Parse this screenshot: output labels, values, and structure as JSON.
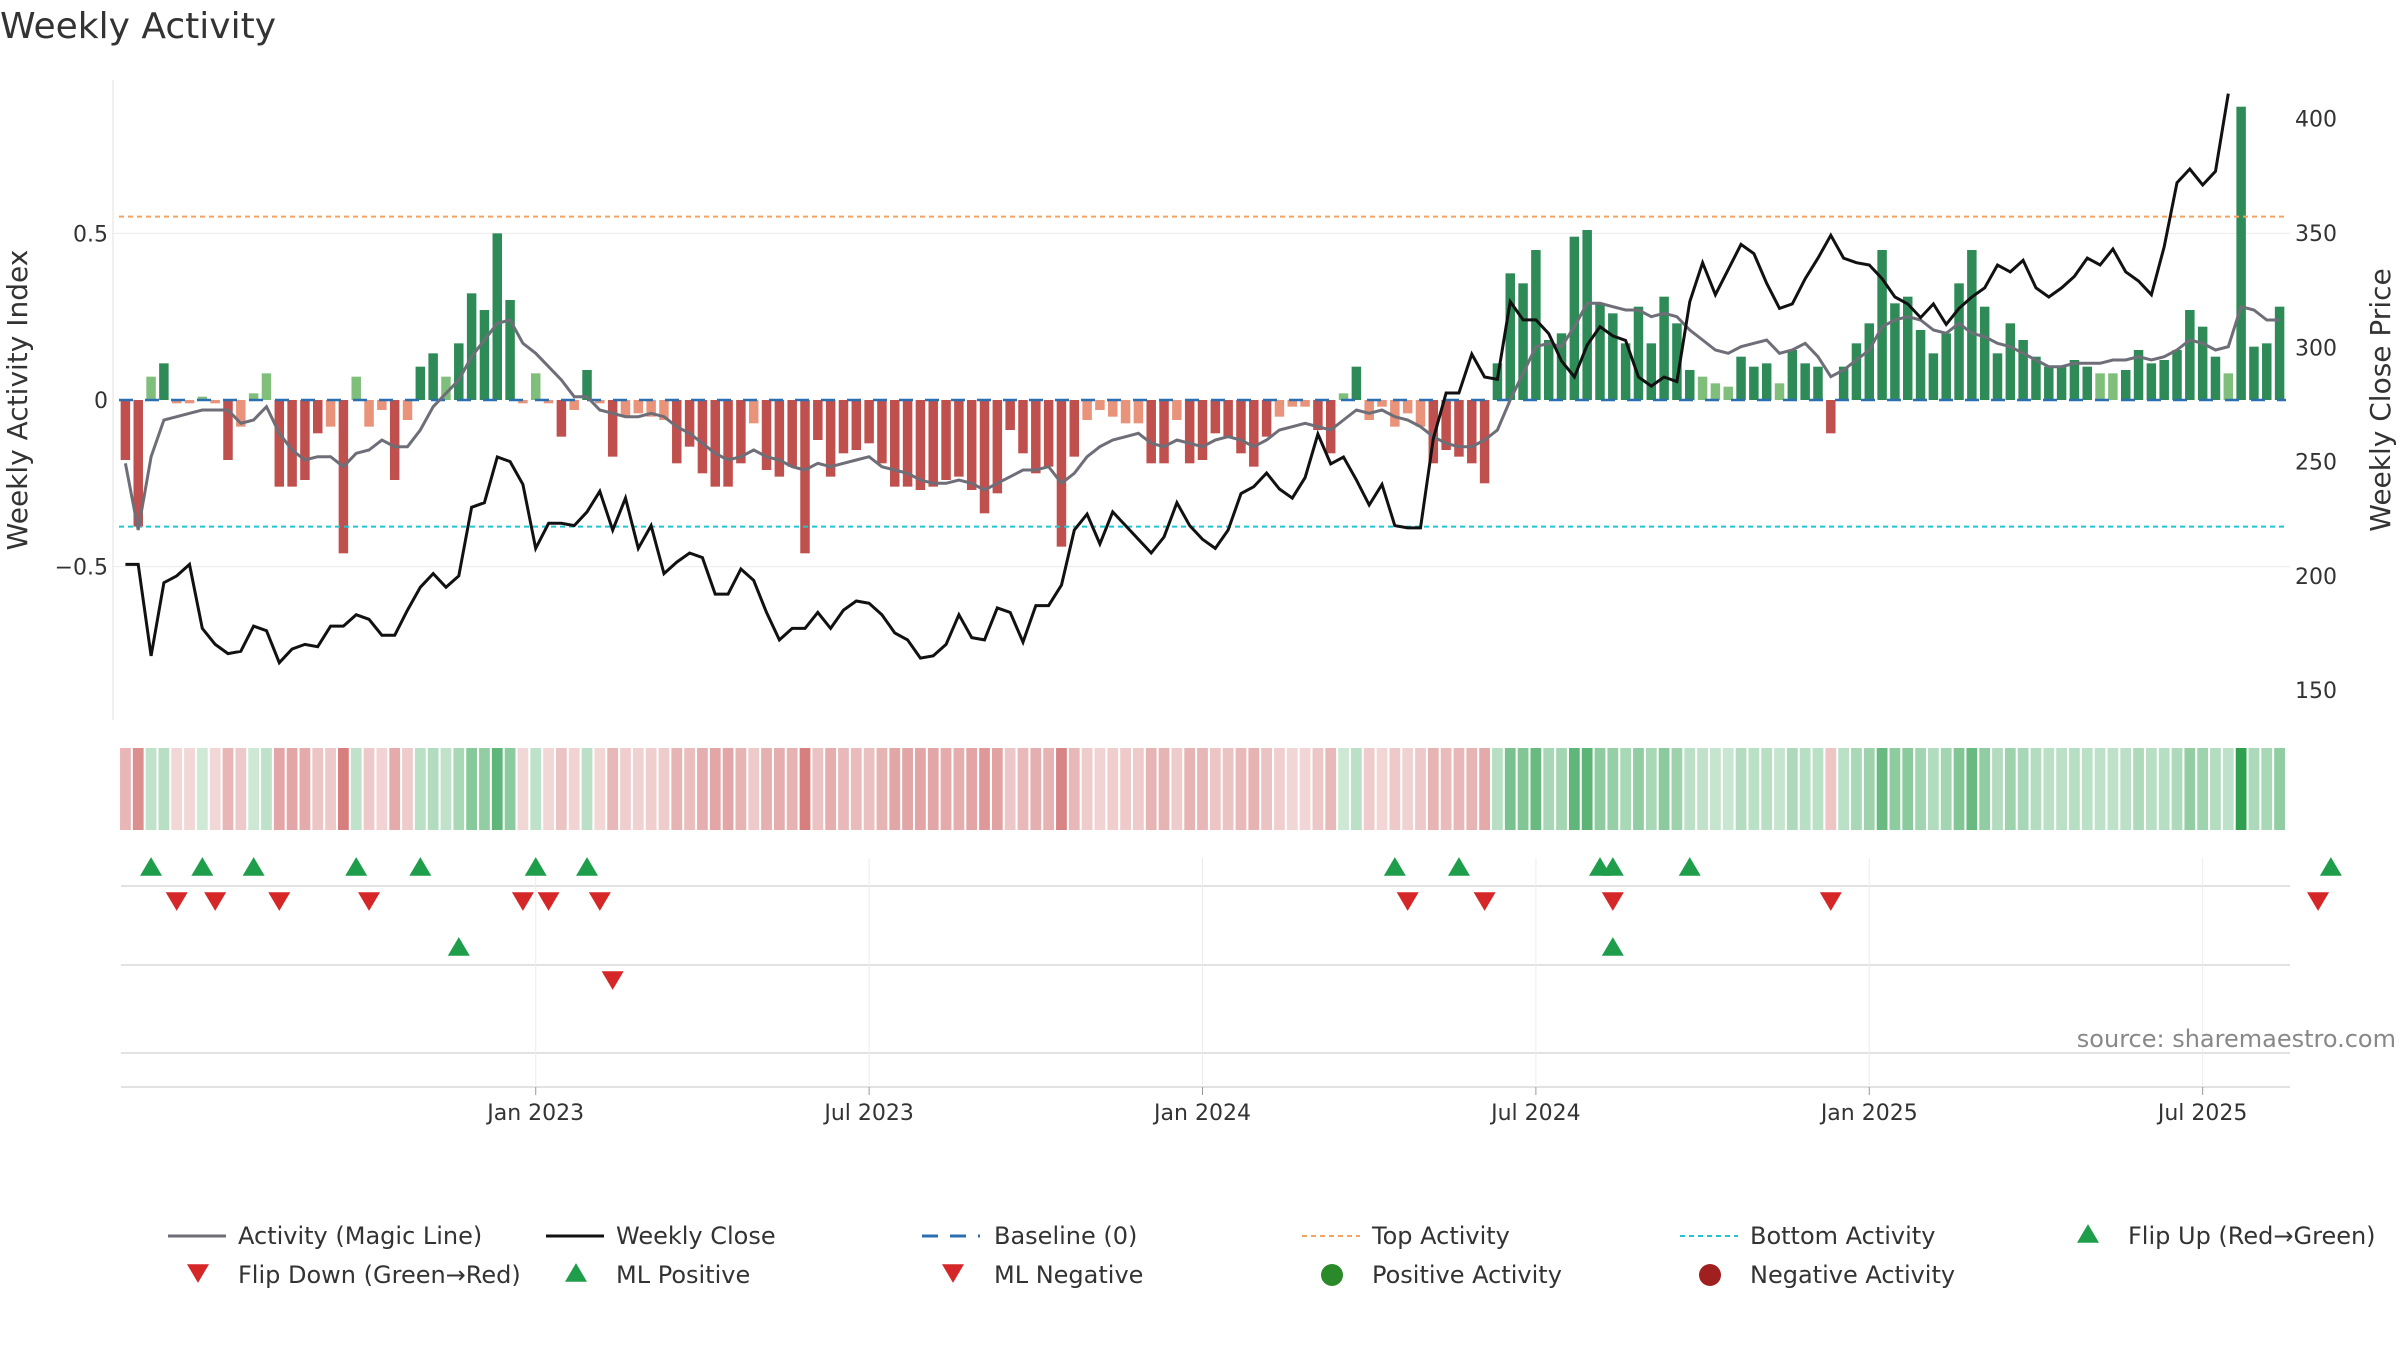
{
  "chart_data": {
    "type": "bar+line",
    "title": "Weekly Activity",
    "left_axis": {
      "label": "Weekly Activity Index",
      "range": [
        -0.95,
        0.95
      ],
      "ticks": [
        -0.5,
        0,
        0.5
      ],
      "tick_labels": [
        "−0.5",
        "0",
        "0.5"
      ]
    },
    "right_axis": {
      "label": "Weekly Close Price",
      "range": [
        140,
        420
      ],
      "ticks": [
        150,
        200,
        250,
        300,
        350,
        400
      ],
      "tick_labels": [
        "150",
        "200",
        "250",
        "300",
        "350",
        "400"
      ]
    },
    "x_axis": {
      "ticks": [
        "Jan 2023",
        "Jul 2023",
        "Jan 2024",
        "Jul 2024",
        "Jan 2025",
        "Jul 2025"
      ],
      "tick_weeks": [
        32,
        58,
        84,
        110,
        136,
        162
      ]
    },
    "thresholds": {
      "top_activity": 0.55,
      "bottom_activity": -0.38,
      "baseline": 0
    },
    "colors": {
      "positive_strong": "#2e8b57",
      "positive_weak": "#7fbf7b",
      "negative_strong": "#c0504d",
      "negative_weak": "#e8937a",
      "magic_line": "#6e6e78",
      "close_line": "#111111",
      "top_line": "#f4a460",
      "bottom_line": "#22c5cf",
      "baseline": "#2b6fb0",
      "flip_up": "#1e9e4a",
      "flip_down": "#d62728",
      "positive_dot": "#2a8a2a",
      "negative_dot": "#a02020"
    },
    "activity_index": [
      -0.18,
      -0.38,
      0.07,
      0.11,
      -0.01,
      -0.01,
      0.01,
      -0.01,
      -0.18,
      -0.08,
      0.02,
      0.08,
      -0.26,
      -0.26,
      -0.24,
      -0.1,
      -0.08,
      -0.46,
      0.07,
      -0.08,
      -0.03,
      -0.24,
      -0.06,
      0.1,
      0.14,
      0.07,
      0.17,
      0.32,
      0.27,
      0.5,
      0.3,
      -0.01,
      0.08,
      -0.01,
      -0.11,
      -0.03,
      0.09,
      -0.01,
      -0.17,
      -0.05,
      -0.04,
      -0.05,
      -0.06,
      -0.19,
      -0.14,
      -0.22,
      -0.26,
      -0.26,
      -0.19,
      -0.07,
      -0.21,
      -0.23,
      -0.2,
      -0.46,
      -0.12,
      -0.23,
      -0.16,
      -0.15,
      -0.13,
      -0.19,
      -0.26,
      -0.26,
      -0.27,
      -0.26,
      -0.24,
      -0.23,
      -0.27,
      -0.34,
      -0.28,
      -0.09,
      -0.16,
      -0.22,
      -0.2,
      -0.44,
      -0.17,
      -0.06,
      -0.03,
      -0.05,
      -0.07,
      -0.07,
      -0.19,
      -0.19,
      -0.06,
      -0.19,
      -0.18,
      -0.1,
      -0.11,
      -0.16,
      -0.2,
      -0.11,
      -0.05,
      -0.02,
      -0.02,
      -0.09,
      -0.16,
      0.02,
      0.1,
      -0.06,
      -0.02,
      -0.08,
      -0.04,
      -0.08,
      -0.19,
      -0.15,
      -0.17,
      -0.19,
      -0.25,
      0.11,
      0.38,
      0.35,
      0.45,
      0.18,
      0.2,
      0.49,
      0.51,
      0.29,
      0.26,
      0.17,
      0.28,
      0.17,
      0.31,
      0.23,
      0.09,
      0.07,
      0.05,
      0.04,
      0.13,
      0.1,
      0.11,
      0.05,
      0.15,
      0.11,
      0.1,
      -0.1,
      0.1,
      0.17,
      0.23,
      0.45,
      0.29,
      0.31,
      0.21,
      0.14,
      0.2,
      0.35,
      0.45,
      0.28,
      0.14,
      0.23,
      0.18,
      0.13,
      0.1,
      0.1,
      0.12,
      0.1,
      0.08,
      0.08,
      0.09,
      0.15,
      0.11,
      0.12,
      0.15,
      0.27,
      0.22,
      0.13,
      0.08,
      0.88,
      0.16,
      0.17,
      0.28
    ],
    "magic_line": [
      -0.19,
      -0.39,
      -0.17,
      -0.06,
      -0.05,
      -0.04,
      -0.03,
      -0.03,
      -0.03,
      -0.07,
      -0.06,
      -0.02,
      -0.1,
      -0.15,
      -0.18,
      -0.17,
      -0.17,
      -0.2,
      -0.16,
      -0.15,
      -0.12,
      -0.14,
      -0.14,
      -0.09,
      -0.02,
      0.02,
      0.06,
      0.13,
      0.18,
      0.23,
      0.24,
      0.17,
      0.14,
      0.1,
      0.06,
      0.01,
      0.01,
      -0.03,
      -0.04,
      -0.05,
      -0.05,
      -0.04,
      -0.05,
      -0.08,
      -0.1,
      -0.13,
      -0.16,
      -0.18,
      -0.17,
      -0.15,
      -0.17,
      -0.18,
      -0.2,
      -0.21,
      -0.19,
      -0.2,
      -0.19,
      -0.18,
      -0.17,
      -0.2,
      -0.21,
      -0.22,
      -0.24,
      -0.25,
      -0.25,
      -0.24,
      -0.25,
      -0.27,
      -0.25,
      -0.23,
      -0.21,
      -0.21,
      -0.2,
      -0.25,
      -0.22,
      -0.17,
      -0.14,
      -0.12,
      -0.11,
      -0.1,
      -0.13,
      -0.14,
      -0.12,
      -0.13,
      -0.14,
      -0.12,
      -0.11,
      -0.12,
      -0.14,
      -0.12,
      -0.09,
      -0.08,
      -0.07,
      -0.08,
      -0.09,
      -0.06,
      -0.03,
      -0.04,
      -0.03,
      -0.05,
      -0.06,
      -0.08,
      -0.11,
      -0.13,
      -0.14,
      -0.14,
      -0.12,
      -0.09,
      0.0,
      0.08,
      0.16,
      0.17,
      0.16,
      0.22,
      0.29,
      0.29,
      0.28,
      0.27,
      0.27,
      0.25,
      0.26,
      0.25,
      0.21,
      0.18,
      0.15,
      0.14,
      0.16,
      0.17,
      0.18,
      0.14,
      0.15,
      0.17,
      0.13,
      0.07,
      0.09,
      0.12,
      0.15,
      0.22,
      0.24,
      0.25,
      0.24,
      0.21,
      0.2,
      0.23,
      0.2,
      0.19,
      0.17,
      0.16,
      0.14,
      0.12,
      0.1,
      0.1,
      0.11,
      0.11,
      0.11,
      0.12,
      0.12,
      0.13,
      0.12,
      0.13,
      0.15,
      0.18,
      0.17,
      0.15,
      0.16,
      0.28,
      0.27,
      0.24,
      0.24
    ],
    "weekly_close": [
      205,
      205,
      165,
      197,
      200,
      205,
      177,
      170,
      166,
      167,
      178,
      176,
      162,
      168,
      170,
      169,
      178,
      178,
      183,
      181,
      174,
      174,
      185,
      195,
      201,
      195,
      200,
      230,
      232,
      252,
      250,
      240,
      212,
      223,
      223,
      222,
      228,
      237,
      220,
      234,
      212,
      222,
      201,
      206,
      210,
      208,
      192,
      192,
      203,
      198,
      184,
      172,
      177,
      177,
      184,
      177,
      185,
      189,
      188,
      183,
      175,
      172,
      164,
      165,
      170,
      183,
      173,
      172,
      186,
      184,
      171,
      187,
      187,
      196,
      220,
      227,
      214,
      228,
      222,
      216,
      210,
      217,
      232,
      222,
      216,
      212,
      220,
      236,
      239,
      245,
      238,
      234,
      243,
      262,
      249,
      252,
      242,
      231,
      240,
      222,
      221,
      221,
      260,
      280,
      280,
      297,
      287,
      286,
      320,
      312,
      312,
      306,
      294,
      287,
      301,
      309,
      305,
      303,
      287,
      283,
      287,
      285,
      320,
      337,
      323,
      334,
      345,
      341,
      328,
      317,
      319,
      330,
      339,
      349,
      339,
      337,
      336,
      330,
      322,
      319,
      313,
      319,
      310,
      317,
      322,
      326,
      336,
      333,
      338,
      326,
      322,
      326,
      331,
      339,
      336,
      343,
      333,
      329,
      323,
      344,
      372,
      378,
      371,
      377,
      411
    ],
    "flip_up_weeks": [
      2,
      6,
      10,
      18,
      23,
      32,
      36,
      99,
      104,
      115,
      116,
      122,
      172
    ],
    "flip_down_weeks": [
      4,
      7,
      12,
      19,
      31,
      33,
      37,
      100,
      106,
      116,
      133,
      171
    ],
    "ml_positive_weeks": [
      26,
      116
    ],
    "ml_negative_weeks": [
      38
    ],
    "source": "source: sharemaestro.com",
    "legend": [
      "Activity (Magic Line)",
      "Weekly Close",
      "Baseline (0)",
      "Top Activity",
      "Bottom Activity",
      "Flip Up (Red→Green)",
      "Flip Down (Green→Red)",
      "ML Positive",
      "ML Negative",
      "Positive Activity",
      "Negative Activity"
    ]
  }
}
